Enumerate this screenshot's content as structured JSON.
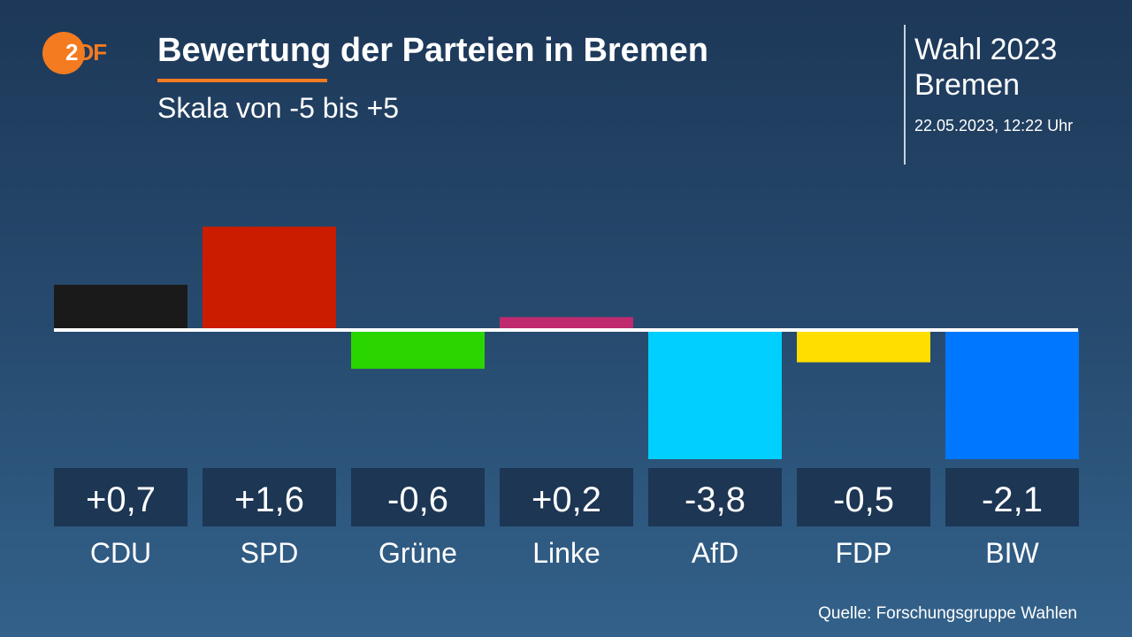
{
  "header": {
    "logo": "ZDF",
    "title": "Bewertung der Parteien in Bremen",
    "subtitle": "Skala von -5 bis +5",
    "election_line1": "Wahl 2023",
    "election_line2": "Bremen",
    "date": "22.05.2023, 12:22 Uhr"
  },
  "footer": {
    "source": "Quelle: Forschungsgruppe Wahlen"
  },
  "chart_data": {
    "type": "bar",
    "title": "Bewertung der Parteien in Bremen",
    "subtitle": "Skala von -5 bis +5",
    "categories": [
      "CDU",
      "SPD",
      "Grüne",
      "Linke",
      "AfD",
      "FDP",
      "BIW"
    ],
    "values": [
      0.7,
      1.6,
      -0.6,
      0.2,
      -3.8,
      -0.5,
      -2.1
    ],
    "value_labels": [
      "+0,7",
      "+1,6",
      "-0,6",
      "+0,2",
      "-3,8",
      "-0,5",
      "-2,1"
    ],
    "colors": [
      "#1a1a1a",
      "#cc1c00",
      "#2bd600",
      "#bf2a6e",
      "#00cfff",
      "#ffde00",
      "#0077ff"
    ],
    "ylim": [
      -5,
      5
    ],
    "grid": false
  }
}
